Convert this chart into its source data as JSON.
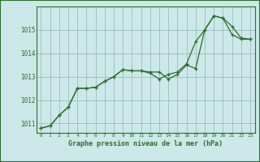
{
  "title": "Graphe pression niveau de la mer (hPa)",
  "background_color": "#cce8e8",
  "plot_bg_color": "#cce8e8",
  "border_color": "#2d6e2d",
  "grid_color": "#9abfbf",
  "line_color": "#2d6e2d",
  "xlim": [
    -0.5,
    23.5
  ],
  "ylim": [
    1010.6,
    1016.0
  ],
  "yticks": [
    1011,
    1012,
    1013,
    1014,
    1015
  ],
  "xticks": [
    0,
    1,
    2,
    3,
    4,
    5,
    6,
    7,
    8,
    9,
    10,
    11,
    12,
    13,
    14,
    15,
    16,
    17,
    18,
    19,
    20,
    21,
    22,
    23
  ],
  "series1_x": [
    0,
    1,
    2,
    3,
    4,
    5,
    6,
    7,
    8,
    9,
    10,
    11,
    12,
    13,
    14,
    15,
    16,
    17,
    18,
    19,
    20,
    21,
    22,
    23
  ],
  "series1_y": [
    1010.8,
    1010.9,
    1011.35,
    1011.7,
    1012.5,
    1012.5,
    1012.55,
    1012.8,
    1013.0,
    1013.3,
    1013.25,
    1013.25,
    1013.2,
    1013.2,
    1012.9,
    1013.1,
    1013.5,
    1013.35,
    1015.0,
    1015.6,
    1015.5,
    1014.8,
    1014.6,
    1014.6
  ],
  "series2_x": [
    0,
    1,
    2,
    3,
    4,
    5,
    6,
    7,
    8,
    9,
    10,
    11,
    12,
    13,
    14,
    15,
    16,
    17,
    18,
    19,
    20,
    21,
    22,
    23
  ],
  "series2_y": [
    1010.8,
    1010.9,
    1011.35,
    1011.7,
    1012.5,
    1012.5,
    1012.55,
    1012.8,
    1013.0,
    1013.3,
    1013.25,
    1013.25,
    1013.15,
    1012.9,
    1013.1,
    1013.2,
    1013.55,
    1014.5,
    1015.0,
    1015.6,
    1015.5,
    1015.15,
    1014.65,
    1014.6
  ]
}
